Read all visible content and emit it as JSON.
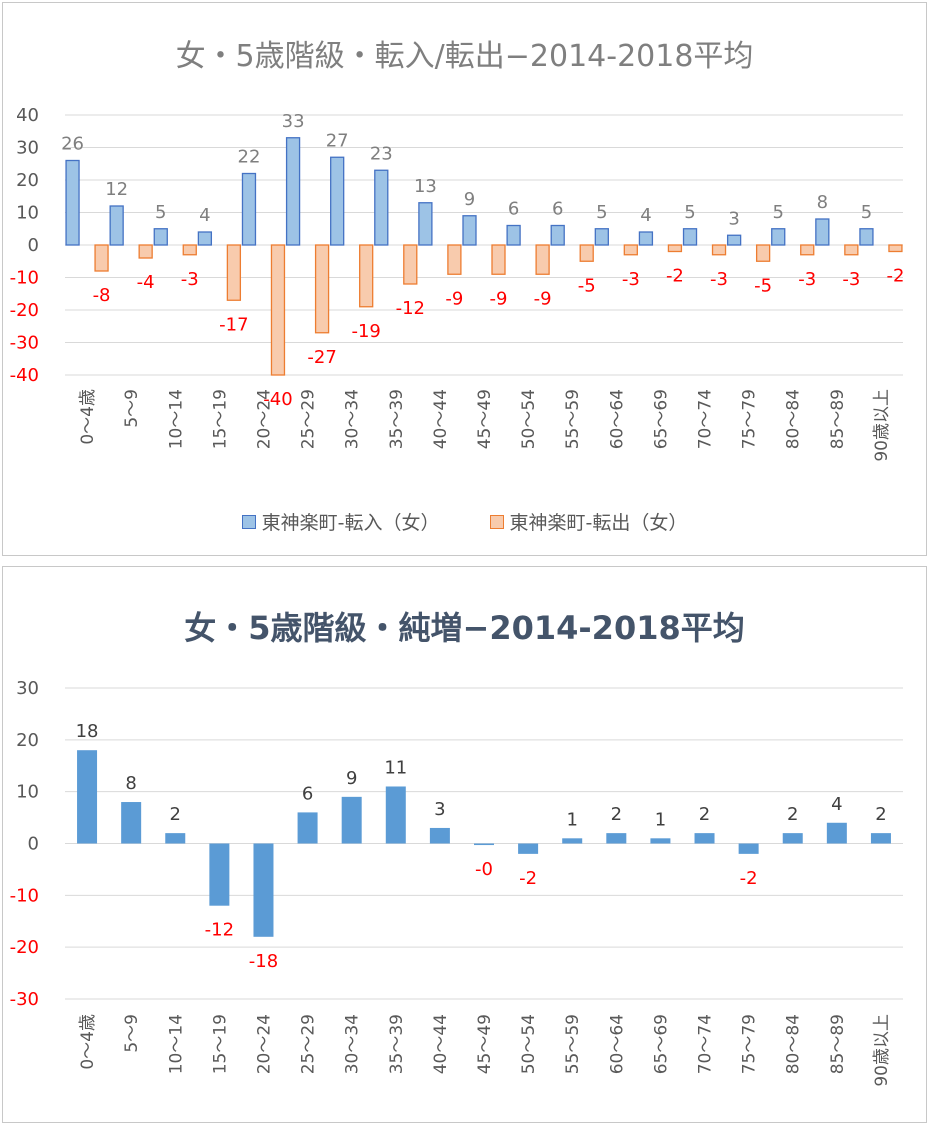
{
  "chart_data": [
    {
      "type": "bar",
      "title": "女・5歳階級・転入/転出−2014-2018平均",
      "categories": [
        "0～4歳",
        "5～9",
        "10～14",
        "15～19",
        "20～24",
        "25～29",
        "30～34",
        "35～39",
        "40～44",
        "45～49",
        "50～54",
        "55～59",
        "60～64",
        "65～69",
        "70～74",
        "75～79",
        "80～84",
        "85～89",
        "90歳以上"
      ],
      "series": [
        {
          "name": "東神楽町-転入（女）",
          "values": [
            26,
            12,
            5,
            4,
            22,
            33,
            27,
            23,
            13,
            9,
            6,
            6,
            5,
            4,
            5,
            3,
            5,
            8,
            5
          ],
          "labels": [
            "26",
            "12",
            "5",
            "4",
            "22",
            "33",
            "27",
            "23",
            "13",
            "9",
            "6",
            "6",
            "5",
            "4",
            "5",
            "3",
            "5",
            "8",
            "5"
          ]
        },
        {
          "name": "東神楽町-転出（女）",
          "values": [
            -8,
            -4,
            -3,
            -17,
            -40,
            -27,
            -19,
            -12,
            -9,
            -9,
            -9,
            -5,
            -3,
            -2,
            -3,
            -5,
            -3,
            -3,
            -2
          ],
          "labels": [
            "-8",
            "-4",
            "-3",
            "-17",
            "-40",
            "-27",
            "-19",
            "-12",
            "-9",
            "-9",
            "-9",
            "-5",
            "-3",
            "-2",
            "-3",
            "-5",
            "-3",
            "-3",
            "-2"
          ]
        }
      ],
      "ylim": [
        -40,
        40
      ],
      "yticks": [
        40,
        30,
        20,
        10,
        0,
        -10,
        -20,
        -30,
        -40
      ],
      "ytick_labels": [
        "40",
        "30",
        "20",
        "10",
        "0",
        "-10",
        "-20",
        "-30",
        "-40"
      ],
      "grid": true,
      "legend": "bottom",
      "colors": {
        "in_fill": "#9dc3e6",
        "in_edge": "#4472c4",
        "out_fill": "#f8cbad",
        "out_edge": "#ed7d31",
        "label_pos": "#7f7f7f",
        "label_neg": "#ff0000",
        "tick_pos": "#595959",
        "tick_neg": "#ff0000"
      }
    },
    {
      "type": "bar",
      "title": "女・5歳階級・純増−2014-2018平均",
      "categories": [
        "0～4歳",
        "5～9",
        "10～14",
        "15～19",
        "20～24",
        "25～29",
        "30～34",
        "35～39",
        "40～44",
        "45～49",
        "50～54",
        "55～59",
        "60～64",
        "65～69",
        "70～74",
        "75～79",
        "80～84",
        "85～89",
        "90歳以上"
      ],
      "series": [
        {
          "values": [
            18,
            8,
            2,
            -12,
            -18,
            6,
            9,
            11,
            3,
            -0.3,
            -2,
            1,
            2,
            1,
            2,
            -2,
            2,
            4,
            2
          ],
          "labels": [
            "18",
            "8",
            "2",
            "-12",
            "-18",
            "6",
            "9",
            "11",
            "3",
            "-0",
            "-2",
            "1",
            "2",
            "1",
            "2",
            "-2",
            "2",
            "4",
            "2"
          ]
        }
      ],
      "ylim": [
        -30,
        30
      ],
      "yticks": [
        30,
        20,
        10,
        0,
        -10,
        -20,
        -30
      ],
      "ytick_labels": [
        "30",
        "20",
        "10",
        "0",
        "-10",
        "-20",
        "-30"
      ],
      "grid": true,
      "colors": {
        "bar": "#5b9bd5",
        "label_pos": "#404040",
        "label_neg": "#ff0000",
        "tick_pos": "#595959",
        "tick_neg": "#ff0000"
      }
    }
  ]
}
